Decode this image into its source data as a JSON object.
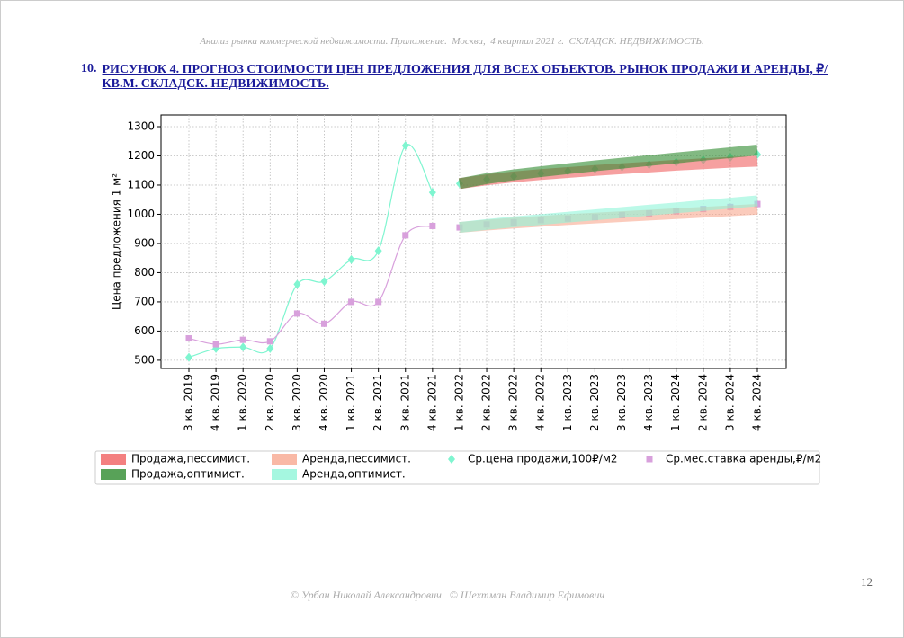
{
  "header": {
    "title": "Анализ рынка коммерческой недвижимости. Приложение.  Москва,  4 квартал 2021 г.  СКЛАДСК. НЕДВИЖИМОСТЬ."
  },
  "caption": {
    "number": "10.",
    "text": "РИСУНОК 4. ПРОГНОЗ СТОИМОСТИ ЦЕН ПРЕДЛОЖЕНИЯ ДЛЯ ВСЕХ ОБЪЕКТОВ. РЫНОК ПРОДАЖИ И АРЕНДЫ, ₽/КВ.М. СКЛАДСК. НЕДВИЖИМОСТЬ."
  },
  "chart_data": {
    "type": "line",
    "ylabel": "Цена предложения 1 м²",
    "categories": [
      "3 кв. 2019",
      "4 кв. 2019",
      "1 кв. 2020",
      "2 кв. 2020",
      "3 кв. 2020",
      "4 кв. 2020",
      "1 кв. 2021",
      "2 кв. 2021",
      "3 кв. 2021",
      "4 кв. 2021",
      "1 кв. 2022",
      "2 кв. 2022",
      "3 кв. 2022",
      "4 кв. 2022",
      "1 кв. 2023",
      "2 кв. 2023",
      "3 кв. 2023",
      "4 кв. 2023",
      "1 кв. 2024",
      "2 кв. 2024",
      "3 кв. 2024",
      "4 кв. 2024"
    ],
    "ylim": [
      472,
      1340
    ],
    "yticks": [
      500,
      600,
      700,
      800,
      900,
      1000,
      1100,
      1200,
      1300
    ],
    "grid": true,
    "series": [
      {
        "name": "Продажа,пессимист.",
        "color": "#f06060",
        "values": [
          null,
          null,
          null,
          null,
          null,
          null,
          null,
          null,
          null,
          null,
          1105,
          1118,
          1128,
          1136,
          1143,
          1150,
          1156,
          1162,
          1168,
          1173,
          1178,
          1182
        ]
      },
      {
        "name": "Продажа,оптимист.",
        "color": "#2e8b2e",
        "values": [
          null,
          null,
          null,
          null,
          null,
          null,
          null,
          null,
          null,
          null,
          1105,
          1122,
          1135,
          1146,
          1156,
          1166,
          1175,
          1184,
          1193,
          1202,
          1211,
          1220
        ]
      },
      {
        "name": "Аренда,пессимист.",
        "color": "#f8a890",
        "values": [
          null,
          null,
          null,
          null,
          null,
          null,
          null,
          null,
          null,
          null,
          955,
          963,
          970,
          976,
          982,
          987,
          992,
          997,
          1002,
          1007,
          1012,
          1017
        ]
      },
      {
        "name": "Аренда,оптимист.",
        "color": "#8ff5d8",
        "values": [
          null,
          null,
          null,
          null,
          null,
          null,
          null,
          null,
          null,
          null,
          955,
          965,
          974,
          982,
          990,
          998,
          1006,
          1014,
          1022,
          1030,
          1038,
          1046
        ]
      },
      {
        "name": "Ср.цена продажи,100₽/м2",
        "color": "#7ff5d0",
        "marker": "diamond",
        "values": [
          510,
          540,
          545,
          540,
          760,
          770,
          845,
          875,
          1235,
          1075,
          1105,
          1120,
          1130,
          1140,
          1148,
          1155,
          1162,
          1170,
          1178,
          1186,
          1195,
          1205
        ]
      },
      {
        "name": "Ср.мес.ставка аренды,₽/м2",
        "color": "#d8a0dc",
        "marker": "square",
        "values": [
          575,
          555,
          570,
          565,
          660,
          625,
          700,
          700,
          928,
          960,
          955,
          965,
          972,
          980,
          985,
          990,
          997,
          1003,
          1010,
          1018,
          1025,
          1035
        ]
      }
    ]
  },
  "footer": {
    "text": "© Урбан Николай Александрович   © Шехтман Владимир Ефимович",
    "page": "12"
  }
}
